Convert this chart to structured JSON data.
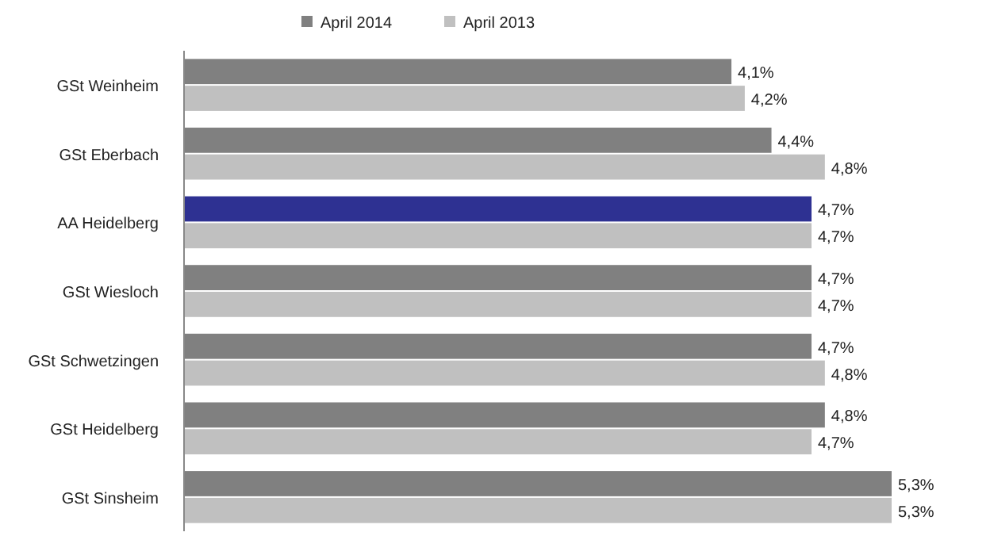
{
  "chart_data": {
    "type": "bar",
    "orientation": "horizontal",
    "categories": [
      "GSt Weinheim",
      "GSt Eberbach",
      "AA Heidelberg",
      "GSt Wiesloch",
      "GSt Schwetzingen",
      "GSt Heidelberg",
      "GSt Sinsheim"
    ],
    "series": [
      {
        "name": "April 2014",
        "color": "#808080",
        "colors": [
          "#808080",
          "#808080",
          "#2e3192",
          "#808080",
          "#808080",
          "#808080",
          "#808080"
        ],
        "values": [
          4.1,
          4.4,
          4.7,
          4.7,
          4.7,
          4.8,
          5.3
        ],
        "value_labels": [
          "4,1%",
          "4,4%",
          "4,7%",
          "4,7%",
          "4,7%",
          "4,8%",
          "5,3%"
        ]
      },
      {
        "name": "April 2013",
        "color": "#c0c0c0",
        "values": [
          4.2,
          4.8,
          4.7,
          4.7,
          4.8,
          4.7,
          5.3
        ],
        "value_labels": [
          "4,2%",
          "4,8%",
          "4,7%",
          "4,7%",
          "4,8%",
          "4,7%",
          "5,3%"
        ]
      }
    ],
    "tick_labels": "y",
    "legend": "top"
  }
}
